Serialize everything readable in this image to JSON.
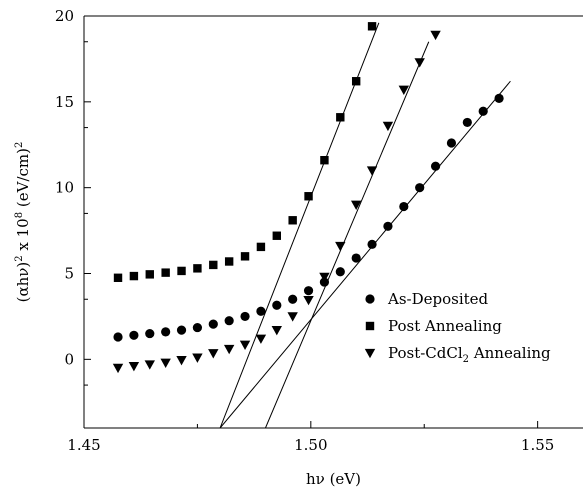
{
  "chart_data": {
    "type": "scatter",
    "xlabel": "hν (eV)",
    "ylabel_parts": {
      "a": "(αhν)",
      "b": "2",
      "c": " x 10",
      "d": "8",
      "e": " (eV/cm)",
      "f": "2"
    },
    "xlim": [
      1.45,
      1.56
    ],
    "ylim": [
      -4,
      20
    ],
    "x_ticks": [
      {
        "value": 1.45,
        "label": "1.45"
      },
      {
        "value": 1.5,
        "label": "1.50"
      },
      {
        "value": 1.55,
        "label": "1.55"
      }
    ],
    "y_ticks": [
      {
        "value": 0,
        "label": "0"
      },
      {
        "value": 5,
        "label": "5"
      },
      {
        "value": 10,
        "label": "10"
      },
      {
        "value": 15,
        "label": "15"
      },
      {
        "value": 20,
        "label": "20"
      }
    ],
    "legend_position": "lower-right",
    "series": [
      {
        "name": "As-Deposited",
        "marker": "circle",
        "points": [
          [
            1.4575,
            1.3
          ],
          [
            1.461,
            1.4
          ],
          [
            1.4645,
            1.5
          ],
          [
            1.468,
            1.6
          ],
          [
            1.4715,
            1.7
          ],
          [
            1.475,
            1.85
          ],
          [
            1.4785,
            2.05
          ],
          [
            1.482,
            2.25
          ],
          [
            1.4855,
            2.5
          ],
          [
            1.489,
            2.8
          ],
          [
            1.4925,
            3.15
          ],
          [
            1.496,
            3.5
          ],
          [
            1.4995,
            4.0
          ],
          [
            1.503,
            4.5
          ],
          [
            1.5065,
            5.1
          ],
          [
            1.51,
            5.9
          ],
          [
            1.5135,
            6.7
          ],
          [
            1.517,
            7.75
          ],
          [
            1.5205,
            8.9
          ],
          [
            1.524,
            10.0
          ],
          [
            1.5275,
            11.25
          ],
          [
            1.531,
            12.6
          ],
          [
            1.5345,
            13.8
          ],
          [
            1.538,
            14.45
          ],
          [
            1.5415,
            15.2
          ]
        ]
      },
      {
        "name": "Post Annealing",
        "marker": "square",
        "points": [
          [
            1.4575,
            4.75
          ],
          [
            1.461,
            4.85
          ],
          [
            1.4645,
            4.95
          ],
          [
            1.468,
            5.05
          ],
          [
            1.4715,
            5.15
          ],
          [
            1.475,
            5.3
          ],
          [
            1.4785,
            5.5
          ],
          [
            1.482,
            5.7
          ],
          [
            1.4855,
            6.0
          ],
          [
            1.489,
            6.55
          ],
          [
            1.4925,
            7.2
          ],
          [
            1.496,
            8.1
          ],
          [
            1.4995,
            9.5
          ],
          [
            1.503,
            11.6
          ],
          [
            1.5065,
            14.1
          ],
          [
            1.51,
            16.2
          ],
          [
            1.5135,
            19.4
          ]
        ]
      },
      {
        "name": "Post-CdCl₂ Annealing",
        "name_parts": {
          "a": "Post-CdCl",
          "b": "2",
          "c": " Annealing"
        },
        "marker": "triangle-down",
        "points": [
          [
            1.4575,
            -0.5
          ],
          [
            1.461,
            -0.4
          ],
          [
            1.4645,
            -0.3
          ],
          [
            1.468,
            -0.2
          ],
          [
            1.4715,
            -0.05
          ],
          [
            1.475,
            0.1
          ],
          [
            1.4785,
            0.35
          ],
          [
            1.482,
            0.6
          ],
          [
            1.4855,
            0.85
          ],
          [
            1.489,
            1.2
          ],
          [
            1.4925,
            1.7
          ],
          [
            1.496,
            2.5
          ],
          [
            1.4995,
            3.45
          ],
          [
            1.503,
            4.8
          ],
          [
            1.5065,
            6.6
          ],
          [
            1.51,
            9.0
          ],
          [
            1.5135,
            11.0
          ],
          [
            1.517,
            13.6
          ],
          [
            1.5205,
            15.7
          ],
          [
            1.524,
            17.3
          ],
          [
            1.5275,
            18.9
          ]
        ]
      }
    ],
    "fit_lines": [
      {
        "name": "as-deposited-fit",
        "x": [
          1.48,
          1.544
        ],
        "y": [
          -4,
          16.2
        ]
      },
      {
        "name": "post-annealing-fit",
        "x": [
          1.48,
          1.515
        ],
        "y": [
          -4,
          19.6
        ]
      },
      {
        "name": "post-cdcl2-fit",
        "x": [
          1.49,
          1.526
        ],
        "y": [
          -4,
          18.5
        ]
      }
    ]
  }
}
